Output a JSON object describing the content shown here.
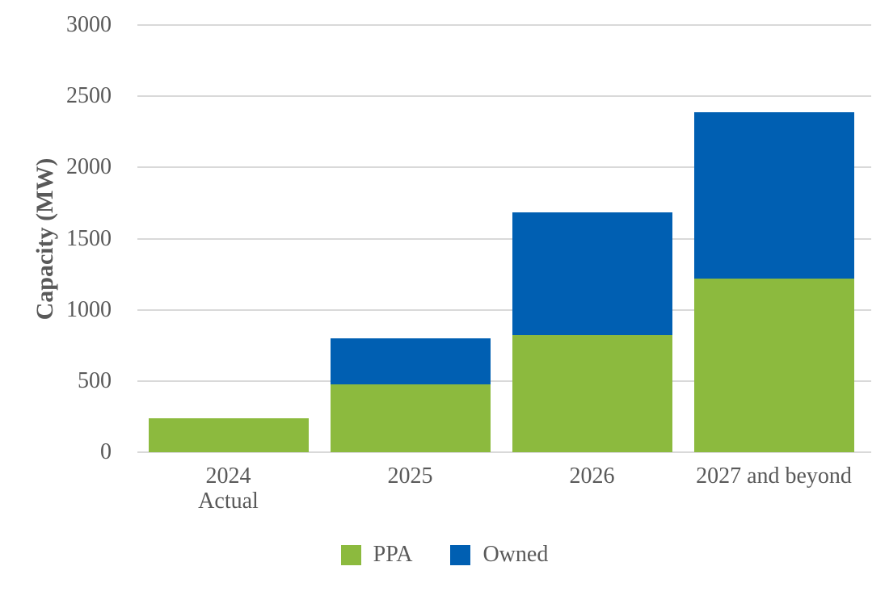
{
  "chart_data": {
    "type": "bar",
    "stacked": true,
    "title": "",
    "xlabel": "",
    "ylabel": "Capacity (MW)",
    "ylim": [
      0,
      3000
    ],
    "yticks": [
      0,
      500,
      1000,
      1500,
      2000,
      2500,
      3000
    ],
    "grid": true,
    "legend_position": "bottom-center",
    "categories": [
      "2024 Actual",
      "2025",
      "2026",
      "2027 and beyond"
    ],
    "category_label_lines": [
      [
        "2024",
        "Actual"
      ],
      [
        "2025"
      ],
      [
        "2026"
      ],
      [
        "2027 and beyond"
      ]
    ],
    "series": [
      {
        "name": "PPA",
        "color": "#8CBA3E",
        "values": [
          240,
          475,
          820,
          1220
        ]
      },
      {
        "name": "Owned",
        "color": "#005FB2",
        "values": [
          0,
          325,
          865,
          1170
        ]
      }
    ],
    "totals": [
      240,
      800,
      1685,
      2390
    ]
  },
  "colors": {
    "ppa_green": "#8CBA3E",
    "owned_blue": "#005FB2",
    "text_gray": "#595959",
    "gridline_gray": "#D9D9D9",
    "background": "#FFFFFF"
  }
}
